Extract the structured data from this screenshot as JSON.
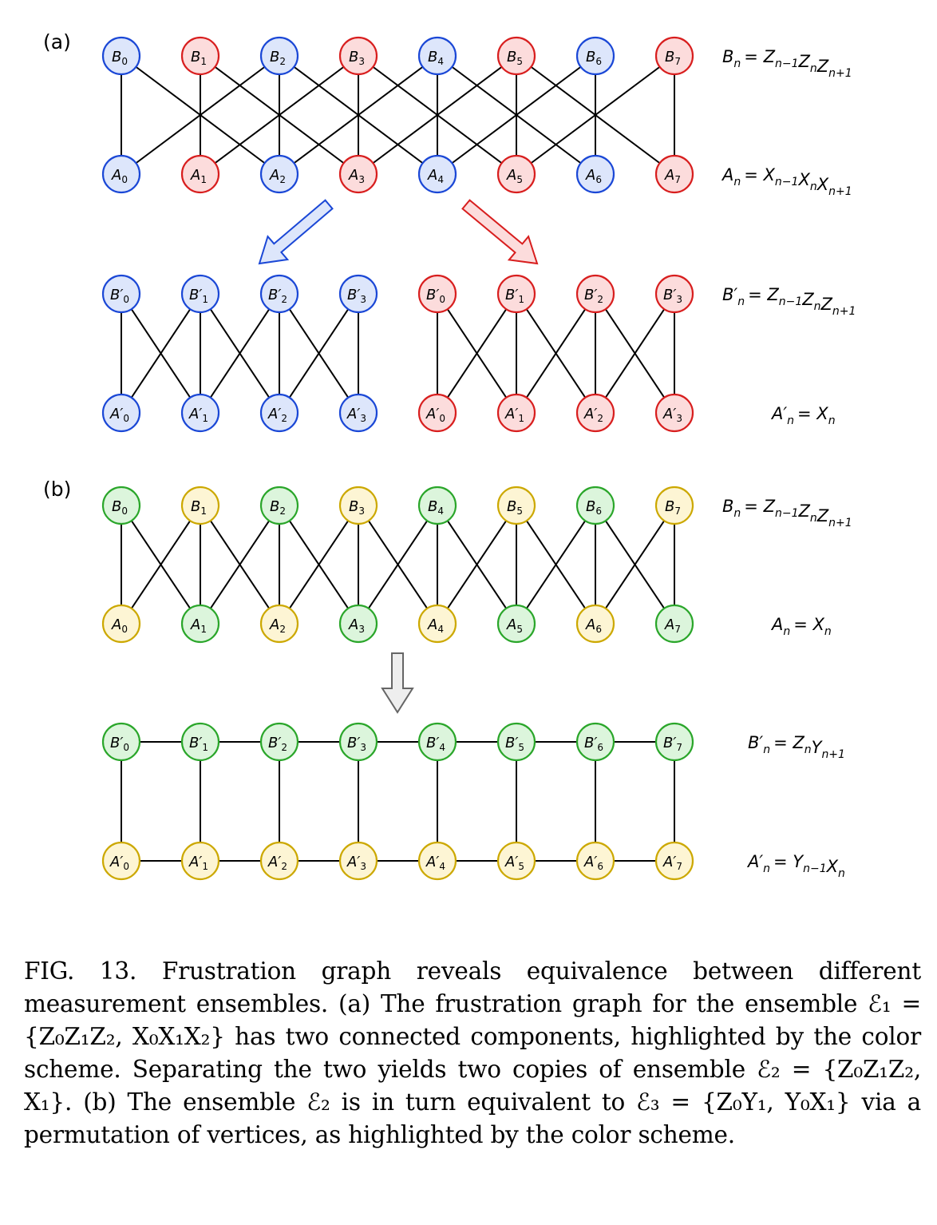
{
  "panel_labels": {
    "a": "(a)",
    "b": "(b)"
  },
  "colors": {
    "blue": {
      "stroke": "#1a47d6",
      "fill": "#dde6fb"
    },
    "red": {
      "stroke": "#d81e1e",
      "fill": "#fcdcdc"
    },
    "green": {
      "stroke": "#2aa62a",
      "fill": "#dcf5dc"
    },
    "yellow": {
      "stroke": "#cca800",
      "fill": "#fdf5d4"
    },
    "gray": {
      "stroke": "#666666",
      "fill": "#eeeeee"
    }
  },
  "equations": {
    "a_B": {
      "letter": "B",
      "sub": "n",
      "rhs": [
        [
          "Z",
          "n−1"
        ],
        [
          "Z",
          "n"
        ],
        [
          "Z",
          "n+1"
        ]
      ]
    },
    "a_A": {
      "letter": "A",
      "sub": "n",
      "rhs": [
        [
          "X",
          "n−1"
        ],
        [
          "X",
          "n"
        ],
        [
          "X",
          "n+1"
        ]
      ]
    },
    "a_Bp": {
      "letter": "B′",
      "sub": "n",
      "rhs": [
        [
          "Z",
          "n−1"
        ],
        [
          "Z",
          "n"
        ],
        [
          "Z",
          "n+1"
        ]
      ]
    },
    "a_Ap": {
      "letter": "A′",
      "sub": "n",
      "rhs": [
        [
          "X",
          "n"
        ]
      ]
    },
    "b_B": {
      "letter": "B",
      "sub": "n",
      "rhs": [
        [
          "Z",
          "n−1"
        ],
        [
          "Z",
          "n"
        ],
        [
          "Z",
          "n+1"
        ]
      ]
    },
    "b_A": {
      "letter": "A",
      "sub": "n",
      "rhs": [
        [
          "X",
          "n"
        ]
      ]
    },
    "b_Bp": {
      "letter": "B′",
      "sub": "n",
      "rhs": [
        [
          "Z",
          "n"
        ],
        [
          "Y",
          "n+1"
        ]
      ]
    },
    "b_Ap": {
      "letter": "A′",
      "sub": "n",
      "rhs": [
        [
          "Y",
          "n−1"
        ],
        [
          "X",
          "n"
        ]
      ]
    }
  },
  "caption": "FIG. 13. Frustration graph reveals equivalence between different measurement ensembles. (a) The frustration graph for the ensemble ℰ₁ = {Z₀Z₁Z₂, X₀X₁X₂} has two connected components, highlighted by the color scheme. Separating the two yields two copies of ensemble ℰ₂ = {Z₀Z₁Z₂, X₁}. (b) The ensemble ℰ₂ is in turn equivalent to ℰ₃ = {Z₀Y₁, Y₀X₁} via a permutation of vertices, as highlighted by the color scheme.",
  "graphs": [
    {
      "id": "a-top",
      "top_row": {
        "letter": "B",
        "prime": false,
        "count": 8
      },
      "bottom_row": {
        "letter": "A",
        "prime": false,
        "count": 8
      },
      "top_colors": [
        "blue",
        "red",
        "blue",
        "red",
        "blue",
        "red",
        "blue",
        "red"
      ],
      "bottom_colors": [
        "blue",
        "red",
        "blue",
        "red",
        "blue",
        "red",
        "blue",
        "red"
      ],
      "edges": [
        [
          0,
          0
        ],
        [
          0,
          2
        ],
        [
          1,
          1
        ],
        [
          1,
          3
        ],
        [
          2,
          0
        ],
        [
          2,
          2
        ],
        [
          2,
          4
        ],
        [
          3,
          1
        ],
        [
          3,
          3
        ],
        [
          3,
          5
        ],
        [
          4,
          2
        ],
        [
          4,
          4
        ],
        [
          4,
          6
        ],
        [
          5,
          3
        ],
        [
          5,
          5
        ],
        [
          5,
          7
        ],
        [
          6,
          4
        ],
        [
          6,
          6
        ],
        [
          7,
          5
        ],
        [
          7,
          7
        ]
      ],
      "horizontal": false
    },
    {
      "id": "a-left",
      "top_row": {
        "letter": "B",
        "prime": true,
        "count": 4
      },
      "bottom_row": {
        "letter": "A",
        "prime": true,
        "count": 4
      },
      "top_colors": [
        "blue",
        "blue",
        "blue",
        "blue"
      ],
      "bottom_colors": [
        "blue",
        "blue",
        "blue",
        "blue"
      ],
      "edges": [
        [
          0,
          0
        ],
        [
          0,
          1
        ],
        [
          1,
          0
        ],
        [
          1,
          1
        ],
        [
          1,
          2
        ],
        [
          2,
          1
        ],
        [
          2,
          2
        ],
        [
          2,
          3
        ],
        [
          3,
          2
        ],
        [
          3,
          3
        ]
      ],
      "horizontal": false
    },
    {
      "id": "a-right",
      "top_row": {
        "letter": "B",
        "prime": true,
        "count": 4
      },
      "bottom_row": {
        "letter": "A",
        "prime": true,
        "count": 4
      },
      "top_colors": [
        "red",
        "red",
        "red",
        "red"
      ],
      "bottom_colors": [
        "red",
        "red",
        "red",
        "red"
      ],
      "edges": [
        [
          0,
          0
        ],
        [
          0,
          1
        ],
        [
          1,
          0
        ],
        [
          1,
          1
        ],
        [
          1,
          2
        ],
        [
          2,
          1
        ],
        [
          2,
          2
        ],
        [
          2,
          3
        ],
        [
          3,
          2
        ],
        [
          3,
          3
        ]
      ],
      "horizontal": false
    },
    {
      "id": "b-top",
      "top_row": {
        "letter": "B",
        "prime": false,
        "count": 8
      },
      "bottom_row": {
        "letter": "A",
        "prime": false,
        "count": 8
      },
      "top_colors": [
        "green",
        "yellow",
        "green",
        "yellow",
        "green",
        "yellow",
        "green",
        "yellow"
      ],
      "bottom_colors": [
        "yellow",
        "green",
        "yellow",
        "green",
        "yellow",
        "green",
        "yellow",
        "green"
      ],
      "edges": [
        [
          0,
          0
        ],
        [
          0,
          1
        ],
        [
          1,
          0
        ],
        [
          1,
          1
        ],
        [
          1,
          2
        ],
        [
          2,
          1
        ],
        [
          2,
          2
        ],
        [
          2,
          3
        ],
        [
          3,
          2
        ],
        [
          3,
          3
        ],
        [
          3,
          4
        ],
        [
          4,
          3
        ],
        [
          4,
          4
        ],
        [
          4,
          5
        ],
        [
          5,
          4
        ],
        [
          5,
          5
        ],
        [
          5,
          6
        ],
        [
          6,
          5
        ],
        [
          6,
          6
        ],
        [
          6,
          7
        ],
        [
          7,
          6
        ],
        [
          7,
          7
        ]
      ],
      "horizontal": false
    },
    {
      "id": "b-bottom",
      "top_row": {
        "letter": "B",
        "prime": true,
        "count": 8
      },
      "bottom_row": {
        "letter": "A",
        "prime": true,
        "count": 8
      },
      "top_colors": [
        "green",
        "green",
        "green",
        "green",
        "green",
        "green",
        "green",
        "green"
      ],
      "bottom_colors": [
        "yellow",
        "yellow",
        "yellow",
        "yellow",
        "yellow",
        "yellow",
        "yellow",
        "yellow"
      ],
      "edges": [
        [
          0,
          0
        ],
        [
          1,
          1
        ],
        [
          2,
          2
        ],
        [
          3,
          3
        ],
        [
          4,
          4
        ],
        [
          5,
          5
        ],
        [
          6,
          6
        ],
        [
          7,
          7
        ]
      ],
      "horizontal": true
    }
  ]
}
